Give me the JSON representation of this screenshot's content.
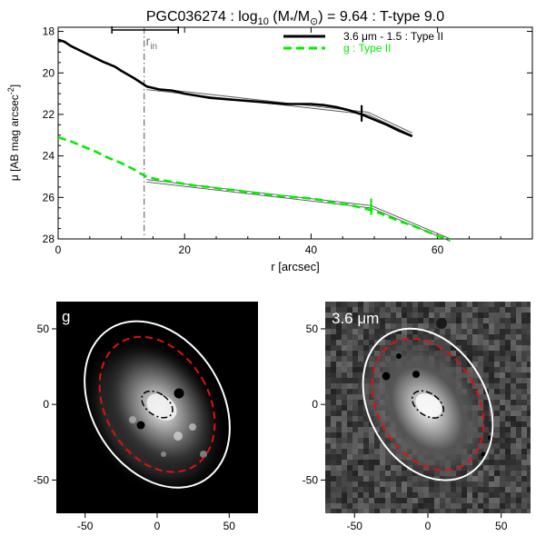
{
  "chart_data": [
    {
      "type": "line",
      "title": "PGC036274 : log₁₀ (M*/M⊙) = 9.64 : T-type 9.0",
      "title_parts": {
        "object": "PGC036274",
        "log_word": "log",
        "log_base": "10",
        "mass_num": "M",
        "mass_num_sub": "*",
        "mass_den": "M",
        "mass_den_sub": "⊙",
        "mass_value": "9.64",
        "ttype": "T-type 9.0"
      },
      "xlabel": "r [arcsec]",
      "ylabel_main": "μ [AB mag arcsec",
      "ylabel_exp": "-2",
      "xlim": [
        0,
        75
      ],
      "ylim": [
        28,
        17.8
      ],
      "y_reversed": true,
      "x_ticks": [
        "0",
        "20",
        "40",
        "60"
      ],
      "y_ticks": [
        "18",
        "20",
        "22",
        "24",
        "26",
        "28"
      ],
      "grid": false,
      "legend_position": "top-right",
      "r_in": {
        "label_main": "r",
        "label_sub": "in",
        "x": 13.6,
        "range": [
          8.5,
          19
        ],
        "color": "#6e6e6e"
      },
      "series": [
        {
          "name": "3.6 μm - 1.5 : Type II",
          "color": "#000000",
          "dashed": false,
          "x": [
            0,
            1,
            2,
            3,
            5,
            7,
            9,
            10,
            12,
            13,
            14,
            16,
            18,
            20,
            22,
            24,
            26,
            28,
            30,
            32,
            34,
            36,
            38,
            40,
            42,
            44,
            46,
            48,
            50,
            52,
            54,
            56
          ],
          "y": [
            18.4,
            18.5,
            18.7,
            18.85,
            19.15,
            19.45,
            19.7,
            19.9,
            20.25,
            20.45,
            20.65,
            20.8,
            20.85,
            21.0,
            21.1,
            21.2,
            21.25,
            21.3,
            21.35,
            21.4,
            21.45,
            21.5,
            21.5,
            21.5,
            21.55,
            21.65,
            21.8,
            22.0,
            22.25,
            22.5,
            22.8,
            23.05
          ],
          "fit_x": [
            14,
            49,
            56
          ],
          "fit_y": [
            20.75,
            21.95,
            22.95
          ],
          "break_r": 48
        },
        {
          "name": "g : Type II",
          "color": "#00ee00",
          "dashed": true,
          "x": [
            0,
            2,
            4,
            6,
            8,
            10,
            12,
            13,
            14,
            16,
            18,
            20,
            22,
            24,
            26,
            28,
            30,
            32,
            34,
            36,
            38,
            40,
            42,
            44,
            46,
            48,
            50,
            52,
            54,
            56,
            58,
            60,
            62
          ],
          "y": [
            23.1,
            23.3,
            23.55,
            23.8,
            24.1,
            24.35,
            24.65,
            24.85,
            25.0,
            25.15,
            25.25,
            25.35,
            25.45,
            25.5,
            25.6,
            25.65,
            25.75,
            25.8,
            25.9,
            25.95,
            26.0,
            26.05,
            26.15,
            26.3,
            26.35,
            26.5,
            26.65,
            26.9,
            27.15,
            27.35,
            27.6,
            27.85,
            28.05
          ],
          "fit_x": [
            14,
            49.5,
            62
          ],
          "fit_y": [
            25.2,
            26.45,
            28.05
          ],
          "break_r": 49.5
        }
      ]
    },
    {
      "type": "image",
      "band_label": "g",
      "xlim": [
        -70,
        70
      ],
      "ylim": [
        -72,
        68
      ],
      "x_ticks": [
        "-50",
        "0",
        "50"
      ],
      "y_ticks": [
        "50",
        "0",
        "-50"
      ],
      "center": [
        0,
        0
      ],
      "inner_ellipse": {
        "semi_major": 12,
        "semi_minor": 7.5,
        "angle_deg": 35,
        "color": "#000000"
      },
      "break_ellipse": {
        "semi_major": 50,
        "semi_minor": 36,
        "angle_deg": 60,
        "color": "#e01010"
      },
      "outer_ellipse": {
        "semi_major": 62,
        "semi_minor": 45,
        "angle_deg": 58,
        "color": "#ffffff"
      }
    },
    {
      "type": "image",
      "band_label_num": "3.6",
      "band_label_unit": "μm",
      "xlim": [
        -70,
        70
      ],
      "ylim": [
        -72,
        68
      ],
      "x_ticks": [
        "-50",
        "0",
        "50"
      ],
      "y_ticks": [
        "50",
        "0",
        "-50"
      ],
      "center": [
        0,
        0
      ],
      "inner_ellipse": {
        "semi_major": 12,
        "semi_minor": 7.5,
        "angle_deg": 35,
        "color": "#000000"
      },
      "break_ellipse": {
        "semi_major": 48,
        "semi_minor": 34,
        "angle_deg": 60,
        "color": "#e01010"
      },
      "outer_ellipse": {
        "semi_major": 55,
        "semi_minor": 40,
        "angle_deg": 60,
        "color": "#ffffff"
      }
    }
  ]
}
